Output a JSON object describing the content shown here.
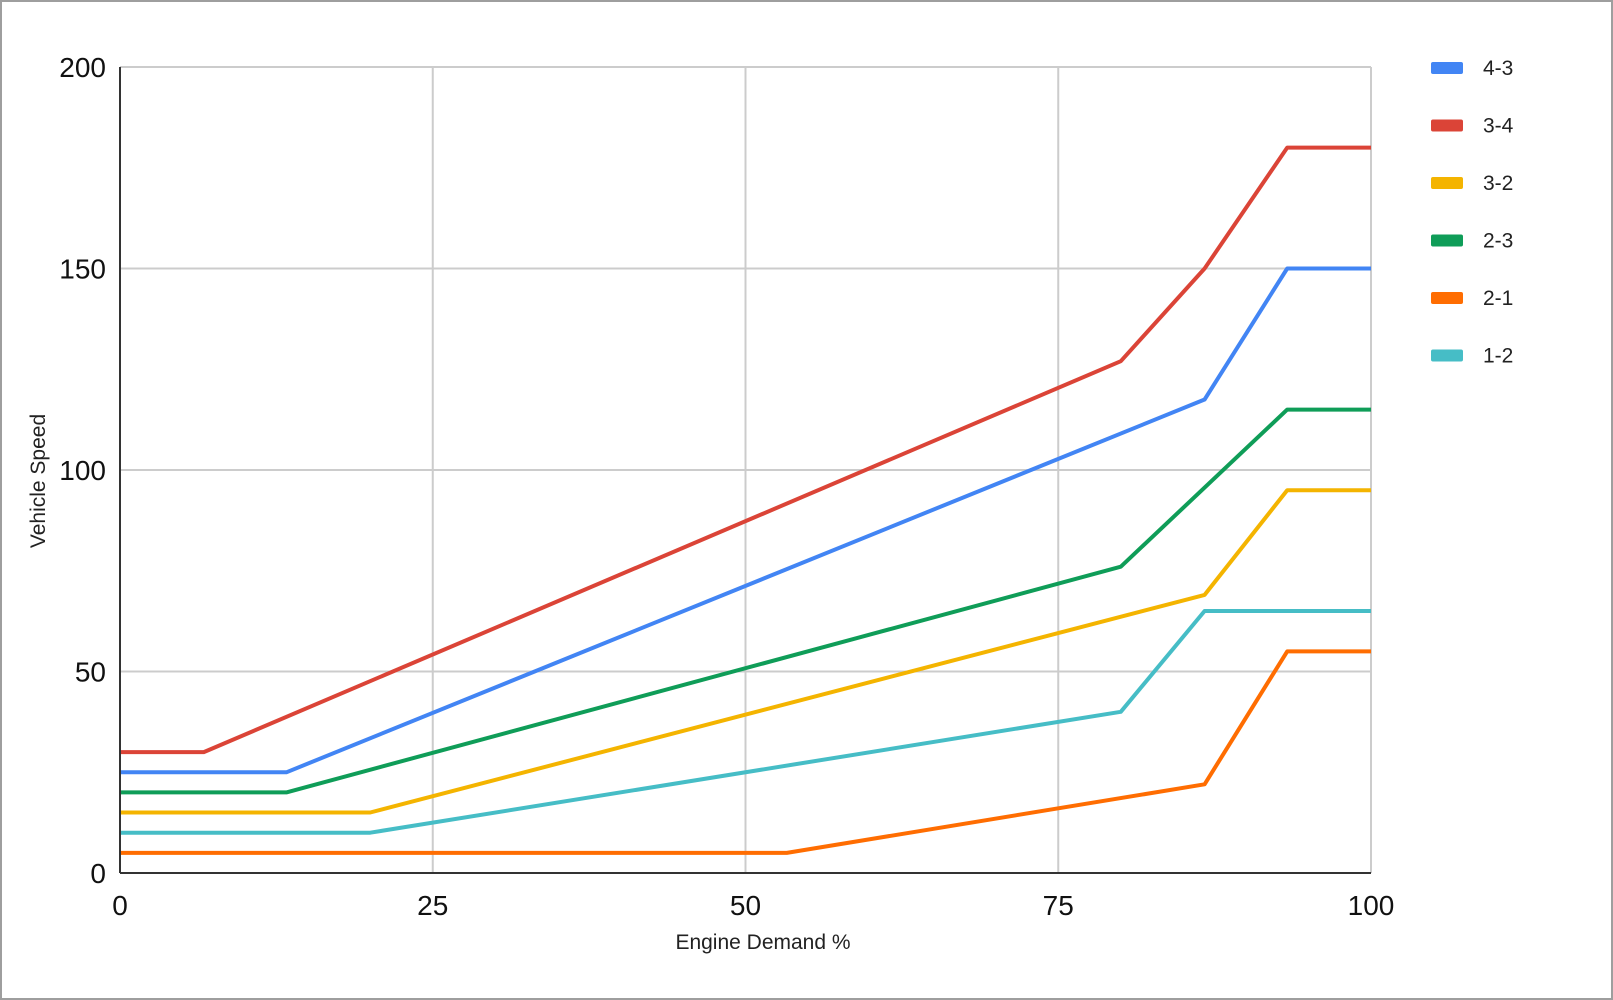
{
  "chart_data": {
    "type": "line",
    "title": "",
    "xlabel": "Engine Demand %",
    "ylabel": "Vehicle Speed",
    "xlim": [
      0,
      100
    ],
    "ylim": [
      0,
      200
    ],
    "x_ticks": [
      "0",
      "25",
      "50",
      "75",
      "100"
    ],
    "y_ticks": [
      "0",
      "50",
      "100",
      "150",
      "200"
    ],
    "grid": true,
    "legend_position": "right",
    "series": [
      {
        "name": "4-3",
        "color": "#4285f4",
        "points": [
          [
            0,
            25
          ],
          [
            13.3,
            25
          ],
          [
            86.7,
            117.5
          ],
          [
            93.3,
            150
          ],
          [
            100,
            150
          ]
        ]
      },
      {
        "name": "3-4",
        "color": "#db4437",
        "points": [
          [
            0,
            30
          ],
          [
            6.7,
            30
          ],
          [
            80,
            127
          ],
          [
            86.7,
            150
          ],
          [
            93.3,
            180
          ],
          [
            100,
            180
          ]
        ]
      },
      {
        "name": "3-2",
        "color": "#f4b400",
        "points": [
          [
            0,
            15
          ],
          [
            20,
            15
          ],
          [
            86.7,
            69
          ],
          [
            93.3,
            95
          ],
          [
            100,
            95
          ]
        ]
      },
      {
        "name": "2-3",
        "color": "#0f9d58",
        "points": [
          [
            0,
            20
          ],
          [
            13.3,
            20
          ],
          [
            80,
            76
          ],
          [
            93.3,
            115
          ],
          [
            100,
            115
          ]
        ]
      },
      {
        "name": "2-1",
        "color": "#ff6d01",
        "points": [
          [
            0,
            5
          ],
          [
            53.3,
            5
          ],
          [
            86.7,
            22
          ],
          [
            93.3,
            55
          ],
          [
            100,
            55
          ]
        ]
      },
      {
        "name": "1-2",
        "color": "#46bdc6",
        "points": [
          [
            0,
            10
          ],
          [
            20,
            10
          ],
          [
            80,
            40
          ],
          [
            86.7,
            65
          ],
          [
            100,
            65
          ]
        ]
      }
    ]
  }
}
